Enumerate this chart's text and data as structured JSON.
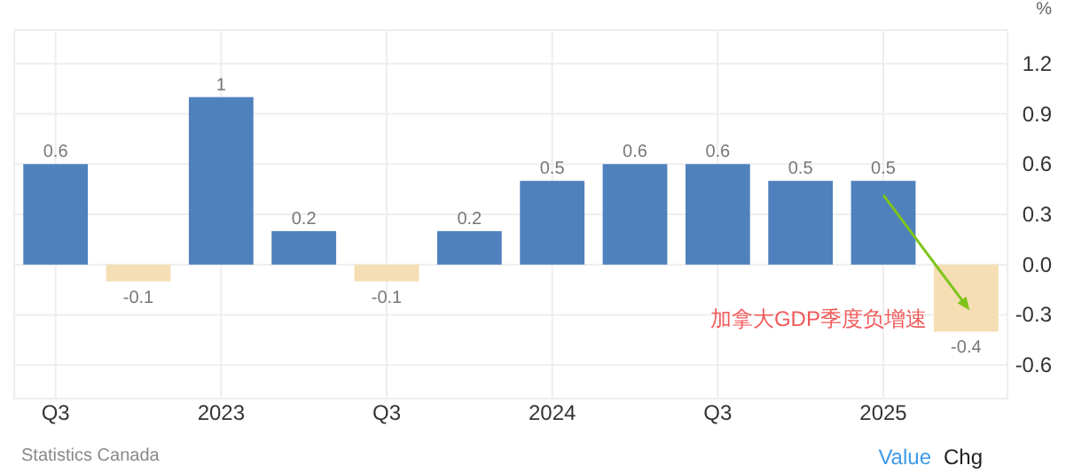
{
  "chart_data": {
    "type": "bar",
    "ylabel": "%",
    "categories": [
      "Q3",
      null,
      "2023",
      null,
      "Q3",
      null,
      "2024",
      null,
      "Q3",
      null,
      "2025",
      null
    ],
    "values": [
      0.6,
      -0.1,
      1,
      0.2,
      -0.1,
      0.2,
      0.5,
      0.6,
      0.6,
      0.5,
      0.5,
      -0.4
    ],
    "colors": [
      "#4f81bd",
      "#f5deb3",
      "#4f81bd",
      "#4f81bd",
      "#f5deb3",
      "#4f81bd",
      "#4f81bd",
      "#4f81bd",
      "#4f81bd",
      "#4f81bd",
      "#4f81bd",
      "#f5deb3"
    ],
    "ylim": [
      -0.8,
      1.4
    ],
    "yticks": [
      {
        "value": -0.6,
        "label": "-0.6"
      },
      {
        "value": -0.3,
        "label": "-0.3"
      },
      {
        "value": 0,
        "label": "0.0"
      },
      {
        "value": 0.3,
        "label": "0.3"
      },
      {
        "value": 0.6,
        "label": "0.6"
      },
      {
        "value": 0.9,
        "label": "0.9"
      },
      {
        "value": 1.2,
        "label": "1.2"
      }
    ],
    "grid": true,
    "data_labels": true,
    "annotations": [
      "加拿大GDP季度负增速",
      "Statistics Canada",
      "Value",
      "Chg"
    ]
  }
}
